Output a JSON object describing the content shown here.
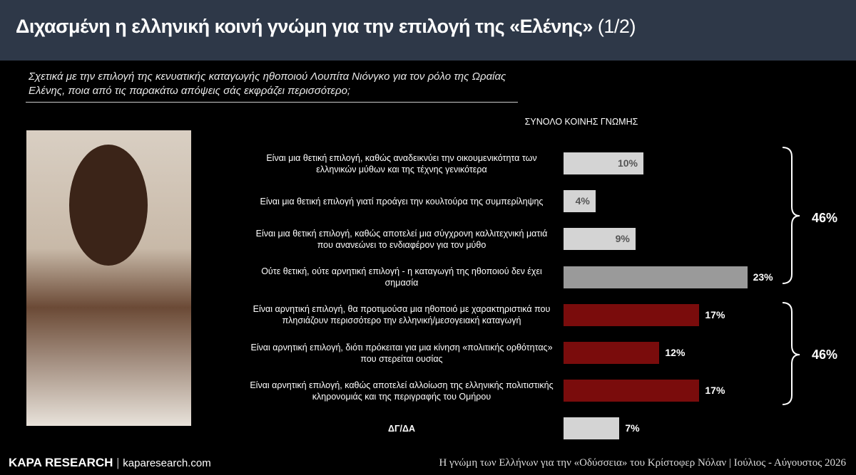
{
  "chart_data": {
    "type": "bar",
    "title": "Διχασμένη η ελληνική κοινή γνώμη για την επιλογή της «Ελένης»",
    "title_suffix": "(1/2)",
    "subtitle": "Σχετικά με την επιλογή της κενυατικής καταγωγής ηθοποιού Λουπίτα Νιόνγκο για τον ρόλο της Ωραίας Ελένης, ποια από τις παρακάτω απόψεις σάς εκφράζει περισσότερο;",
    "chart_heading": "ΣΥΝΟΛΟ ΚΟΙΝΗΣ ΓΝΩΜΗΣ",
    "categories": [
      "Είναι μια θετική επιλογή, καθώς αναδεικνύει την οικουμενικότητα των ελληνικών μύθων και της τέχνης γενικότερα",
      "Είναι μια θετική επιλογή γιατί προάγει την κουλτούρα της συμπερίληψης",
      "Είναι μια θετική επιλογή, καθώς αποτελεί μια σύγχρονη καλλιτεχνική ματιά που ανανεώνει το ενδιαφέρον για τον μύθο",
      "Ούτε θετική, ούτε αρνητική επιλογή - η καταγωγή της ηθοποιού δεν έχει σημασία",
      "Είναι αρνητική επιλογή, θα προτιμούσα μια ηθοποιό με χαρακτηριστικά που πλησιάζουν περισσότερο την ελληνική/μεσογειακή καταγωγή",
      "Είναι αρνητική επιλογή, διότι πρόκειται για μια κίνηση «πολιτικής ορθότητας» που στερείται ουσίας",
      "Είναι αρνητική επιλογή, καθώς αποτελεί αλλοίωση της ελληνικής πολιτιστικής κληρονομιάς και της περιγραφής του Ομήρου",
      "ΔΓ/ΔΑ"
    ],
    "values": [
      10,
      4,
      9,
      23,
      17,
      12,
      17,
      7
    ],
    "value_labels": [
      "10%",
      "4%",
      "9%",
      "23%",
      "17%",
      "12%",
      "17%",
      "7%"
    ],
    "colors": [
      "#d4d4d4",
      "#d4d4d4",
      "#d4d4d4",
      "#9a9a9a",
      "#7a0c0c",
      "#7a0c0c",
      "#7a0c0c",
      "#d4d4d4"
    ],
    "annotations": [
      "46%",
      "46%"
    ]
  },
  "footer": {
    "brand": "KAPA RESEARCH",
    "site": "kaparesearch.com",
    "note": "Η γνώμη των Ελλήνων για την «Οδύσσεια» του Κρίστοφερ Νόλαν | Ιούλιος - Αύγουστος 2026"
  }
}
